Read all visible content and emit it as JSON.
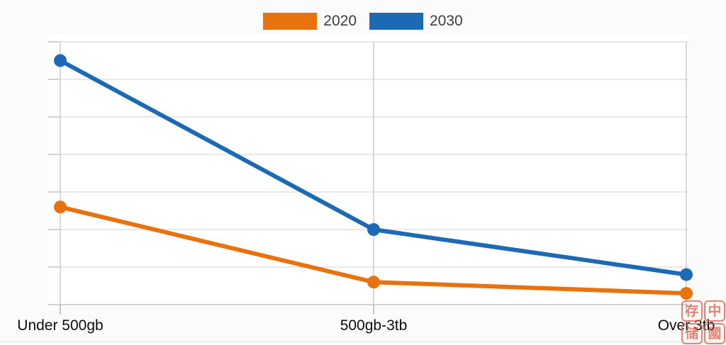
{
  "chart_data": {
    "type": "line",
    "title": "",
    "xlabel": "",
    "ylabel": "",
    "categories": [
      "Under 500gb",
      "500gb-3tb",
      "Over 3tb"
    ],
    "series": [
      {
        "name": "2020",
        "color": "#E8720E",
        "values": [
          26,
          6,
          3
        ]
      },
      {
        "name": "2030",
        "color": "#1C6AB3",
        "values": [
          65,
          20,
          8
        ]
      }
    ],
    "ylim": [
      0,
      70
    ],
    "ytick_step": 10,
    "y_tick_labels_visible": false,
    "grid": true,
    "legend_position": "top-center",
    "point_style": "filled-circle"
  },
  "watermark": {
    "seal_chars": [
      "存",
      "中",
      "储",
      "國"
    ],
    "color": "#DE5B44"
  }
}
